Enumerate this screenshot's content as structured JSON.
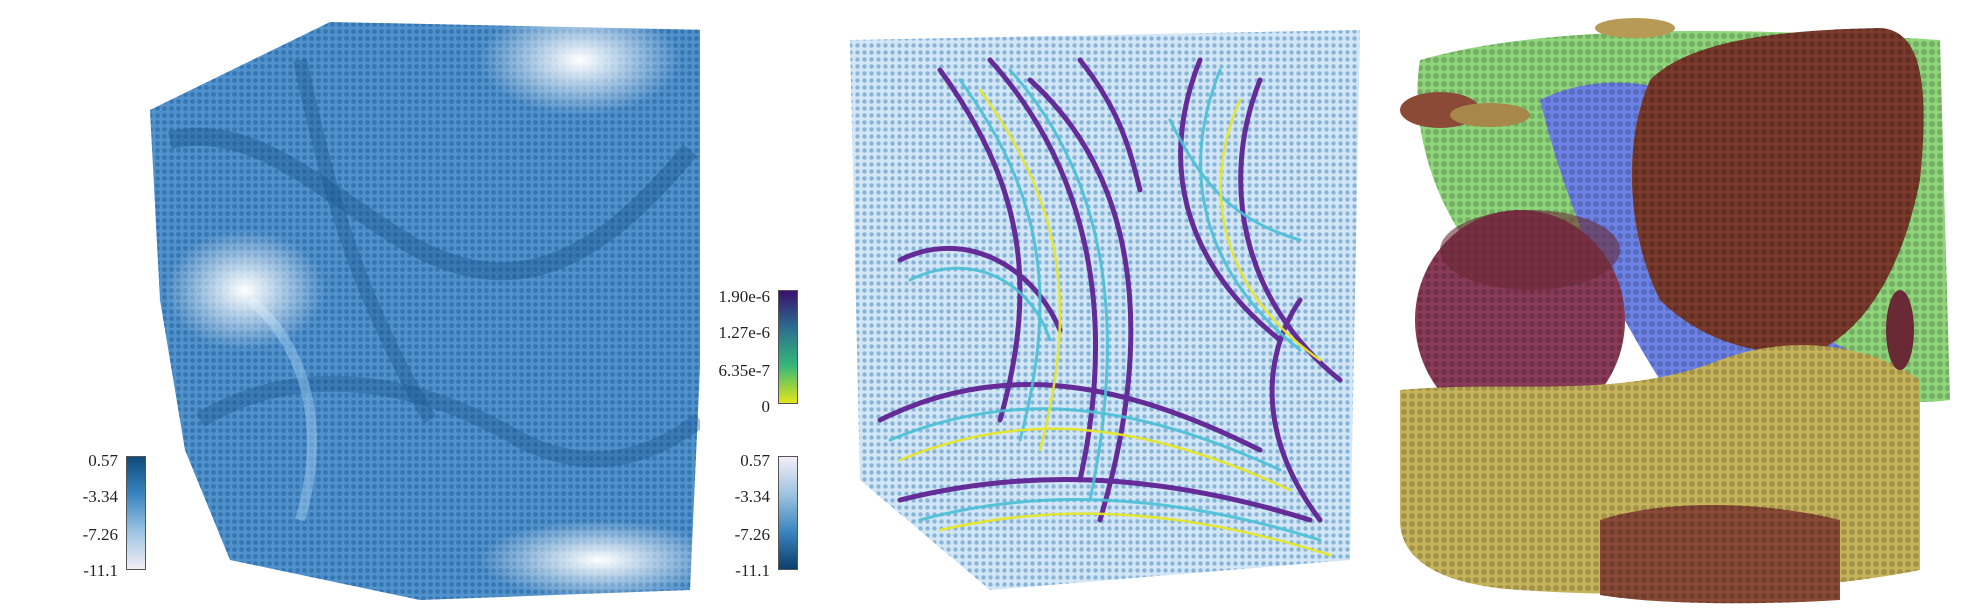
{
  "colorbars": {
    "left": {
      "ticks": [
        "0.57",
        "-3.34",
        "-7.26",
        "-11.1"
      ],
      "gradient": [
        "#0d4a7a",
        "#3a85c0",
        "#9cc4e2",
        "#f1eef6"
      ]
    },
    "middle_top": {
      "ticks": [
        "1.90e-6",
        "1.27e-6",
        "6.35e-7",
        "0"
      ],
      "gradient": [
        "#3b0f70",
        "#2c6f8e",
        "#35b779",
        "#e4e51a"
      ]
    },
    "middle_bottom": {
      "ticks": [
        "0.57",
        "-3.34",
        "-7.26",
        "-11.1"
      ],
      "gradient": [
        "#f3eef7",
        "#9ec3e0",
        "#3a85c0",
        "#0b3f6b"
      ]
    }
  },
  "colors": {
    "blue_volume": "#2f7bbf",
    "streamline_purple": "#5b1a8f",
    "streamline_cyan": "#4ac0d6",
    "streamline_yellow": "#e6e72a",
    "segment_brown": "#7a3a2c",
    "segment_green": "#8fd67b",
    "segment_blue": "#6d82e6",
    "segment_yellow": "#c6b35a",
    "segment_magenta": "#8a3b58"
  }
}
